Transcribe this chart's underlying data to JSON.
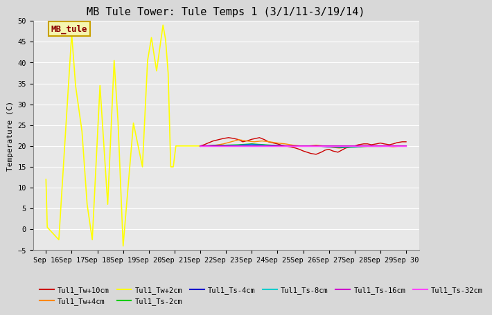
{
  "title": "MB Tule Tower: Tule Temps 1 (3/1/11-3/19/14)",
  "ylabel": "Temperature (C)",
  "ylim": [
    -5,
    50
  ],
  "yticks": [
    -5,
    0,
    5,
    10,
    15,
    20,
    25,
    30,
    35,
    40,
    45,
    50
  ],
  "annotation_label": "MB_tule",
  "annotation_color": "#8B0000",
  "annotation_bg": "#f5f5b0",
  "annotation_border": "#c8a000",
  "series": [
    {
      "label": "Tul1_Tw+10cm",
      "color": "#cc0000",
      "linewidth": 1.0,
      "x": [
        22.0,
        22.15,
        22.3,
        22.5,
        22.7,
        22.9,
        23.1,
        23.3,
        23.5,
        23.65,
        23.85,
        24.0,
        24.15,
        24.3,
        24.5,
        24.65,
        24.85,
        25.0,
        25.15,
        25.3,
        25.5,
        25.7,
        25.85,
        26.0,
        26.15,
        26.3,
        26.5,
        26.7,
        26.85,
        27.0,
        27.15,
        27.35,
        27.5,
        27.65,
        27.85,
        28.0,
        28.15,
        28.35,
        28.5,
        28.65,
        28.85,
        29.0,
        29.15,
        29.35,
        29.5,
        29.65,
        29.85,
        30.0
      ],
      "y": [
        20.0,
        20.3,
        20.7,
        21.2,
        21.5,
        21.8,
        22.0,
        21.8,
        21.5,
        21.0,
        21.3,
        21.6,
        21.8,
        22.0,
        21.5,
        21.0,
        20.7,
        20.5,
        20.2,
        20.0,
        19.8,
        19.5,
        19.2,
        18.8,
        18.5,
        18.2,
        18.0,
        18.5,
        19.0,
        19.2,
        18.8,
        18.5,
        19.0,
        19.5,
        19.8,
        20.0,
        20.3,
        20.5,
        20.5,
        20.3,
        20.5,
        20.7,
        20.5,
        20.3,
        20.5,
        20.8,
        21.0,
        21.0
      ]
    },
    {
      "label": "Tul1_Tw+4cm",
      "color": "#ff8800",
      "linewidth": 1.0,
      "x": [
        22.0,
        22.3,
        22.6,
        22.9,
        23.2,
        23.5,
        23.8,
        24.1,
        24.4,
        24.7,
        25.0,
        25.3,
        25.6,
        25.9,
        26.2,
        26.5,
        26.8,
        27.1,
        27.4,
        27.7,
        28.0,
        28.3,
        28.6,
        28.9,
        29.2,
        29.5,
        29.8,
        30.0
      ],
      "y": [
        20.0,
        20.0,
        20.2,
        20.5,
        21.0,
        21.5,
        21.2,
        21.0,
        21.2,
        21.0,
        20.7,
        20.5,
        20.2,
        20.0,
        20.0,
        20.2,
        20.0,
        19.7,
        19.5,
        19.7,
        19.8,
        20.0,
        20.0,
        20.0,
        20.0,
        19.8,
        20.0,
        20.0
      ]
    },
    {
      "label": "Tul1_Tw+2cm",
      "color": "#ffff00",
      "linewidth": 1.2,
      "x": [
        16.0,
        16.05,
        16.5,
        17.0,
        17.15,
        17.4,
        17.6,
        17.8,
        18.1,
        18.4,
        18.65,
        18.8,
        19.0,
        19.4,
        19.75,
        19.95,
        20.1,
        20.3,
        20.55,
        20.65,
        20.75,
        20.85,
        20.95,
        21.05,
        21.1,
        22.0,
        23.0,
        24.0,
        25.0,
        26.0,
        27.0,
        28.0,
        29.0,
        30.0
      ],
      "y": [
        12.0,
        0.5,
        -2.5,
        47.0,
        34.5,
        23.5,
        6.0,
        -2.5,
        34.5,
        6.0,
        40.5,
        26.0,
        -4.0,
        25.5,
        15.0,
        40.5,
        46.0,
        38.0,
        49.0,
        45.5,
        37.5,
        15.0,
        15.0,
        20.0,
        20.0,
        20.0,
        20.0,
        20.0,
        20.0,
        20.0,
        20.0,
        20.0,
        20.0,
        20.0
      ]
    },
    {
      "label": "Tul1_Ts-2cm",
      "color": "#00cc00",
      "linewidth": 1.0,
      "x": [
        22.0,
        22.5,
        23.0,
        23.5,
        24.0,
        24.5,
        25.0,
        25.5,
        26.0,
        26.5,
        27.0,
        27.5,
        28.0,
        28.5,
        29.0,
        29.5,
        30.0
      ],
      "y": [
        19.9,
        20.1,
        20.2,
        20.3,
        20.5,
        20.3,
        20.1,
        20.0,
        20.0,
        20.0,
        19.8,
        19.6,
        19.7,
        19.9,
        19.9,
        20.0,
        20.0
      ]
    },
    {
      "label": "Tul1_Ts-4cm",
      "color": "#0000cc",
      "linewidth": 1.0,
      "x": [
        22.0,
        22.5,
        23.0,
        23.5,
        24.0,
        24.5,
        25.0,
        25.5,
        26.0,
        26.5,
        27.0,
        27.5,
        28.0,
        28.5,
        29.0,
        29.5,
        30.0
      ],
      "y": [
        20.0,
        20.1,
        20.1,
        20.2,
        20.4,
        20.2,
        20.1,
        20.0,
        20.0,
        20.0,
        19.8,
        19.7,
        19.8,
        20.0,
        20.0,
        20.0,
        20.0
      ]
    },
    {
      "label": "Tul1_Ts-8cm",
      "color": "#00cccc",
      "linewidth": 1.0,
      "x": [
        22.0,
        22.5,
        23.0,
        23.5,
        24.0,
        24.5,
        25.0,
        25.5,
        26.0,
        26.5,
        27.0,
        27.5,
        28.0,
        28.5,
        29.0,
        29.5,
        30.0
      ],
      "y": [
        20.0,
        20.0,
        20.1,
        20.2,
        20.3,
        20.2,
        20.0,
        20.0,
        20.0,
        20.0,
        19.9,
        19.8,
        19.8,
        20.0,
        20.0,
        20.0,
        20.0
      ]
    },
    {
      "label": "Tul1_Ts-16cm",
      "color": "#cc00cc",
      "linewidth": 1.5,
      "x": [
        22.0,
        22.5,
        23.0,
        23.5,
        24.0,
        24.5,
        25.0,
        25.5,
        26.0,
        26.5,
        27.0,
        27.5,
        28.0,
        28.5,
        29.0,
        29.5,
        30.0
      ],
      "y": [
        20.0,
        20.0,
        20.0,
        20.0,
        20.0,
        20.0,
        20.0,
        20.0,
        20.0,
        20.0,
        20.0,
        20.0,
        20.0,
        20.0,
        20.0,
        20.0,
        20.0
      ]
    },
    {
      "label": "Tul1_Ts-32cm",
      "color": "#ff44ff",
      "linewidth": 1.0,
      "x": [
        22.0,
        22.5,
        23.0,
        23.5,
        24.0,
        24.5,
        25.0,
        25.5,
        26.0,
        26.5,
        27.0,
        27.5,
        28.0,
        28.5,
        29.0,
        29.5,
        30.0
      ],
      "y": [
        20.0,
        20.0,
        20.0,
        20.0,
        20.0,
        20.0,
        20.0,
        20.0,
        20.0,
        20.0,
        20.0,
        20.0,
        20.0,
        20.0,
        20.0,
        20.0,
        20.0
      ]
    }
  ],
  "xtick_positions": [
    16,
    17,
    18,
    19,
    20,
    21,
    22,
    23,
    24,
    25,
    26,
    27,
    28,
    29,
    30
  ],
  "xtick_labels": [
    "Sep 16",
    "Sep 17",
    "Sep 18",
    "Sep 19",
    "Sep 20",
    "Sep 21",
    "Sep 22",
    "Sep 23",
    "Sep 24",
    "Sep 25",
    "Sep 26",
    "Sep 27",
    "Sep 28",
    "Sep 29",
    "Sep 30"
  ],
  "xlim": [
    15.5,
    30.5
  ],
  "grid_color": "#ffffff",
  "plot_bg": "#e8e8e8",
  "fig_bg": "#d8d8d8",
  "title_fontsize": 11,
  "axis_fontsize": 8,
  "tick_fontsize": 7.5,
  "legend_fontsize": 7.5,
  "font_family": "DejaVu Sans Mono"
}
